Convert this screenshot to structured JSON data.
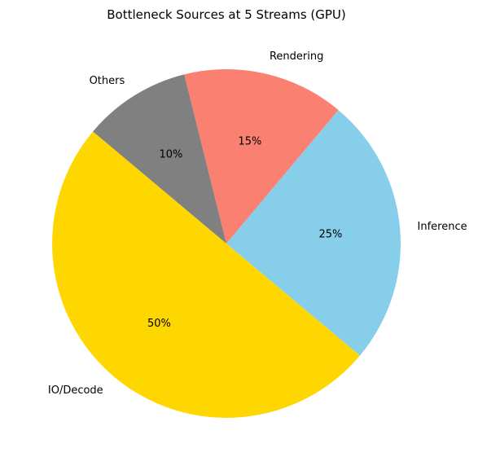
{
  "chart_data": {
    "type": "pie",
    "title": "Bottleneck Sources at 5 Streams (GPU)",
    "slices": [
      {
        "label": "IO/Decode",
        "value": 50,
        "pct_label": "50%",
        "color": "#FFD700"
      },
      {
        "label": "Inference",
        "value": 25,
        "pct_label": "25%",
        "color": "#87CEEB"
      },
      {
        "label": "Rendering",
        "value": 15,
        "pct_label": "15%",
        "color": "#FA8072"
      },
      {
        "label": "Others",
        "value": 10,
        "pct_label": "10%",
        "color": "#808080"
      }
    ],
    "start_angle_deg": 140,
    "direction": "counterclockwise",
    "legend": "none"
  }
}
